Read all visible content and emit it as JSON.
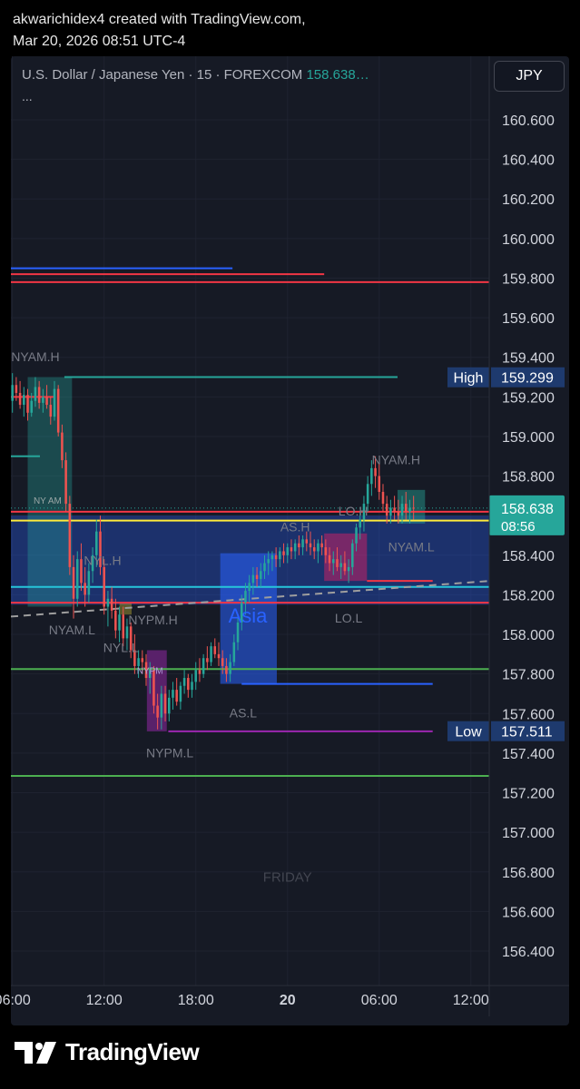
{
  "header": {
    "line1": "akwarichidex4 created with TradingView.com,",
    "line2": "Mar 20, 2026 08:51 UTC-4"
  },
  "legend": {
    "symbol": "U.S. Dollar / Japanese Yen · 15 · FOREXCOM",
    "price": "158.638…",
    "more": "..."
  },
  "currency_button": "JPY",
  "footer": {
    "brand": "TradingView"
  },
  "colors": {
    "up": "#26a69a",
    "down": "#ef5350",
    "panel": "#161a25"
  },
  "chart_data": {
    "type": "candlestick",
    "symbol": "USD/JPY",
    "interval": "15",
    "y_ticks": [
      160.6,
      160.4,
      160.2,
      160.0,
      159.8,
      159.6,
      159.4,
      159.2,
      159.0,
      158.8,
      158.6,
      158.4,
      158.2,
      158.0,
      157.8,
      157.6,
      157.4,
      157.2,
      157.0,
      156.8,
      156.6,
      156.4
    ],
    "ylim": [
      156.25,
      160.75
    ],
    "x_ticks": [
      {
        "label": "06:00",
        "h": 6
      },
      {
        "label": "12:00",
        "h": 12
      },
      {
        "label": "18:00",
        "h": 18
      },
      {
        "label": "20",
        "h": 24,
        "bold": true
      },
      {
        "label": "06:00",
        "h": 30
      },
      {
        "label": "12:00",
        "h": 36
      }
    ],
    "xlim_hours": [
      5.9,
      37.2
    ],
    "price_badges": [
      {
        "label": "High",
        "value": "159.299",
        "y": 159.299
      },
      {
        "label": "Low",
        "value": "157.511",
        "y": 157.511
      }
    ],
    "last_price": {
      "value": "158.638",
      "countdown": "08:56",
      "y": 158.638
    },
    "hlines": [
      {
        "y": 159.85,
        "x0": 5.9,
        "x1": 20.4,
        "color": "#2962ff"
      },
      {
        "y": 159.82,
        "x0": 5.9,
        "x1": 26.4,
        "color": "#f23645"
      },
      {
        "y": 159.78,
        "x0": 5.9,
        "x1": 37.2,
        "color": "#f23645"
      },
      {
        "y": 159.3,
        "x0": 9.4,
        "x1": 31.2,
        "color": "#26a69a"
      },
      {
        "y": 159.2,
        "x0": 5.9,
        "x1": 8.8,
        "color": "#f23645"
      },
      {
        "y": 158.9,
        "x0": 5.9,
        "x1": 7.8,
        "color": "#26a69a"
      },
      {
        "y": 158.62,
        "x0": 5.9,
        "x1": 37.2,
        "color": "#f23645"
      },
      {
        "y": 158.575,
        "x0": 5.9,
        "x1": 37.2,
        "color": "#ffeb3b"
      },
      {
        "y": 158.24,
        "x0": 5.9,
        "x1": 37.2,
        "color": "#26c6da"
      },
      {
        "y": 158.16,
        "x0": 5.9,
        "x1": 37.2,
        "color": "#f23645"
      },
      {
        "y": 157.825,
        "x0": 5.9,
        "x1": 37.2,
        "color": "#4caf50"
      },
      {
        "y": 157.285,
        "x0": 5.9,
        "x1": 37.2,
        "color": "#4caf50"
      },
      {
        "y": 157.75,
        "x0": 21.0,
        "x1": 33.5,
        "color": "#2962ff"
      },
      {
        "y": 157.51,
        "x0": 16.2,
        "x1": 33.5,
        "color": "#9c27b0"
      },
      {
        "y": 158.27,
        "x0": 29.2,
        "x1": 33.5,
        "color": "#f23645"
      }
    ],
    "zones": [
      {
        "y0": 158.15,
        "y1": 158.6,
        "x0": 5.9,
        "x1": 37.2,
        "color": "#2962ff",
        "opacity": 0.33
      },
      {
        "y0": 158.14,
        "y1": 159.3,
        "x0": 7.0,
        "x1": 9.9,
        "color": "#26a69a",
        "opacity": 0.35
      },
      {
        "y0": 157.51,
        "y1": 157.92,
        "x0": 14.8,
        "x1": 16.1,
        "color": "#9c27b0",
        "opacity": 0.5
      },
      {
        "y0": 157.75,
        "y1": 158.41,
        "x0": 19.6,
        "x1": 23.3,
        "color": "#2962ff",
        "opacity": 0.55
      },
      {
        "y0": 158.27,
        "y1": 158.51,
        "x0": 26.4,
        "x1": 29.2,
        "color": "#e91e63",
        "opacity": 0.45
      },
      {
        "y0": 158.56,
        "y1": 158.73,
        "x0": 31.2,
        "x1": 33.0,
        "color": "#26a69a",
        "opacity": 0.45
      },
      {
        "y0": 158.1,
        "y1": 158.16,
        "x0": 13.0,
        "x1": 13.8,
        "color": "#ffeb3b",
        "opacity": 0.3
      }
    ],
    "trendline": {
      "x0": 5.9,
      "y0": 158.09,
      "x1": 37.2,
      "y1": 158.27,
      "color": "#9e9e9e"
    },
    "dotted_last": {
      "y": 158.638,
      "color": "#26a69a"
    },
    "annotations": [
      {
        "text": "NYAM.H",
        "x": 7.5,
        "y": 159.38,
        "color": "#787b86",
        "size": 14
      },
      {
        "text": "NY AM",
        "x": 8.3,
        "y": 158.66,
        "color": "#9aa7a6",
        "size": 10
      },
      {
        "text": "NYL.H",
        "x": 11.9,
        "y": 158.35,
        "color": "#787b86",
        "size": 14
      },
      {
        "text": "NYAM.L",
        "x": 9.9,
        "y": 158.0,
        "color": "#787b86",
        "size": 14
      },
      {
        "text": "NYPM.H",
        "x": 15.2,
        "y": 158.05,
        "color": "#787b86",
        "size": 14
      },
      {
        "text": "NYL.L",
        "x": 13.1,
        "y": 157.91,
        "color": "#787b86",
        "size": 14
      },
      {
        "text": "NYPM",
        "x": 15.0,
        "y": 157.8,
        "color": "#b39ddb",
        "size": 10
      },
      {
        "text": "Asia",
        "x": 21.4,
        "y": 158.06,
        "color": "#2962ff",
        "size": 22
      },
      {
        "text": "AS.H",
        "x": 24.5,
        "y": 158.52,
        "color": "#787b86",
        "size": 14
      },
      {
        "text": "AS.L",
        "x": 21.1,
        "y": 157.58,
        "color": "#787b86",
        "size": 14
      },
      {
        "text": "NYPM.L",
        "x": 16.3,
        "y": 157.38,
        "color": "#787b86",
        "size": 14
      },
      {
        "text": "LO.H",
        "x": 28.3,
        "y": 158.6,
        "color": "#787b86",
        "size": 14
      },
      {
        "text": "LO.L",
        "x": 28.0,
        "y": 158.06,
        "color": "#787b86",
        "size": 14
      },
      {
        "text": "NYAM.H",
        "x": 31.1,
        "y": 158.86,
        "color": "#787b86",
        "size": 14
      },
      {
        "text": "NYAM.L",
        "x": 32.1,
        "y": 158.42,
        "color": "#787b86",
        "size": 14
      },
      {
        "text": "FRIDAY",
        "x": 24.0,
        "y": 156.75,
        "color": "#434651",
        "size": 15
      }
    ],
    "candles": [
      [
        6.0,
        159.18,
        159.32,
        159.12,
        159.26
      ],
      [
        6.25,
        159.26,
        159.3,
        159.18,
        159.22
      ],
      [
        6.5,
        159.22,
        159.28,
        159.14,
        159.16
      ],
      [
        6.75,
        159.16,
        159.25,
        159.1,
        159.21
      ],
      [
        7.0,
        159.21,
        159.24,
        159.08,
        159.12
      ],
      [
        7.25,
        159.12,
        159.22,
        159.1,
        159.18
      ],
      [
        7.5,
        159.18,
        159.3,
        159.15,
        159.25
      ],
      [
        7.75,
        159.25,
        159.28,
        159.14,
        159.17
      ],
      [
        8.0,
        159.17,
        159.24,
        159.12,
        159.2
      ],
      [
        8.25,
        159.2,
        159.26,
        159.14,
        159.16
      ],
      [
        8.5,
        159.16,
        159.2,
        159.06,
        159.1
      ],
      [
        8.75,
        159.1,
        159.28,
        159.08,
        159.24
      ],
      [
        9.0,
        159.24,
        159.26,
        159.0,
        159.02
      ],
      [
        9.25,
        159.02,
        159.06,
        158.84,
        158.88
      ],
      [
        9.5,
        158.88,
        158.92,
        158.62,
        158.66
      ],
      [
        9.75,
        158.66,
        158.7,
        158.3,
        158.34
      ],
      [
        10.0,
        158.34,
        158.4,
        158.08,
        158.18
      ],
      [
        10.25,
        158.18,
        158.42,
        158.14,
        158.38
      ],
      [
        10.5,
        158.38,
        158.46,
        158.22,
        158.26
      ],
      [
        10.75,
        158.26,
        158.34,
        158.14,
        158.2
      ],
      [
        11.0,
        158.2,
        158.36,
        158.16,
        158.32
      ],
      [
        11.25,
        158.32,
        158.44,
        158.26,
        158.4
      ],
      [
        11.5,
        158.4,
        158.58,
        158.34,
        158.52
      ],
      [
        11.75,
        158.52,
        158.6,
        158.3,
        158.34
      ],
      [
        12.0,
        158.34,
        158.38,
        158.1,
        158.14
      ],
      [
        12.25,
        158.14,
        158.22,
        158.04,
        158.18
      ],
      [
        12.5,
        158.18,
        158.24,
        158.08,
        158.12
      ],
      [
        12.75,
        158.12,
        158.18,
        157.98,
        158.02
      ],
      [
        13.0,
        158.02,
        158.14,
        157.96,
        158.1
      ],
      [
        13.25,
        158.1,
        158.14,
        157.94,
        157.98
      ],
      [
        13.5,
        157.98,
        158.08,
        157.92,
        158.04
      ],
      [
        13.75,
        158.04,
        158.06,
        157.88,
        157.92
      ],
      [
        14.0,
        157.92,
        158.0,
        157.8,
        157.84
      ],
      [
        14.25,
        157.84,
        157.92,
        157.78,
        157.88
      ],
      [
        14.5,
        157.88,
        157.92,
        157.8,
        157.86
      ],
      [
        14.75,
        157.86,
        157.9,
        157.74,
        157.78
      ],
      [
        15.0,
        157.78,
        157.86,
        157.7,
        157.82
      ],
      [
        15.25,
        157.82,
        157.84,
        157.6,
        157.64
      ],
      [
        15.5,
        157.64,
        157.7,
        157.52,
        157.58
      ],
      [
        15.75,
        157.58,
        157.74,
        157.52,
        157.7
      ],
      [
        16.0,
        157.7,
        157.74,
        157.56,
        157.6
      ],
      [
        16.25,
        157.6,
        157.72,
        157.56,
        157.68
      ],
      [
        16.5,
        157.68,
        157.76,
        157.62,
        157.72
      ],
      [
        16.75,
        157.72,
        157.78,
        157.64,
        157.66
      ],
      [
        17.0,
        157.66,
        157.76,
        157.62,
        157.74
      ],
      [
        17.25,
        157.74,
        157.82,
        157.7,
        157.78
      ],
      [
        17.5,
        157.78,
        157.8,
        157.68,
        157.72
      ],
      [
        17.75,
        157.72,
        157.8,
        157.68,
        157.76
      ],
      [
        18.0,
        157.76,
        157.86,
        157.72,
        157.82
      ],
      [
        18.25,
        157.82,
        157.88,
        157.76,
        157.8
      ],
      [
        18.5,
        157.8,
        157.9,
        157.78,
        157.88
      ],
      [
        18.75,
        157.88,
        157.94,
        157.82,
        157.86
      ],
      [
        19.0,
        157.86,
        157.96,
        157.84,
        157.94
      ],
      [
        19.25,
        157.94,
        157.98,
        157.88,
        157.9
      ],
      [
        19.5,
        157.9,
        157.96,
        157.84,
        157.88
      ],
      [
        19.75,
        157.88,
        157.92,
        157.8,
        157.84
      ],
      [
        20.0,
        157.84,
        157.88,
        157.76,
        157.8
      ],
      [
        20.25,
        157.8,
        157.9,
        157.76,
        157.86
      ],
      [
        20.5,
        157.86,
        158.0,
        157.84,
        157.96
      ],
      [
        20.75,
        157.96,
        158.1,
        157.92,
        158.06
      ],
      [
        21.0,
        158.06,
        158.2,
        158.02,
        158.16
      ],
      [
        21.25,
        158.16,
        158.26,
        158.1,
        158.22
      ],
      [
        21.5,
        158.22,
        158.3,
        158.16,
        158.26
      ],
      [
        21.75,
        158.26,
        158.34,
        158.2,
        158.3
      ],
      [
        22.0,
        158.3,
        158.34,
        158.24,
        158.28
      ],
      [
        22.25,
        158.28,
        158.36,
        158.24,
        158.32
      ],
      [
        22.5,
        158.32,
        158.4,
        158.28,
        158.36
      ],
      [
        22.75,
        158.36,
        158.42,
        158.3,
        158.38
      ],
      [
        23.0,
        158.38,
        158.42,
        158.32,
        158.4
      ],
      [
        23.25,
        158.4,
        158.44,
        158.34,
        158.38
      ],
      [
        23.5,
        158.38,
        158.44,
        158.34,
        158.42
      ],
      [
        23.75,
        158.42,
        158.46,
        158.36,
        158.4
      ],
      [
        24.0,
        158.4,
        158.46,
        158.36,
        158.44
      ],
      [
        24.25,
        158.44,
        158.48,
        158.38,
        158.42
      ],
      [
        24.5,
        158.42,
        158.48,
        158.38,
        158.46
      ],
      [
        24.75,
        158.46,
        158.5,
        158.4,
        158.44
      ],
      [
        25.0,
        158.44,
        158.5,
        158.4,
        158.48
      ],
      [
        25.25,
        158.48,
        158.52,
        158.42,
        158.46
      ],
      [
        25.5,
        158.46,
        158.52,
        158.4,
        158.44
      ],
      [
        25.75,
        158.44,
        158.48,
        158.38,
        158.42
      ],
      [
        26.0,
        158.42,
        158.48,
        158.36,
        158.46
      ],
      [
        26.25,
        158.46,
        158.5,
        158.4,
        158.44
      ],
      [
        26.5,
        158.44,
        158.48,
        158.36,
        158.4
      ],
      [
        26.75,
        158.4,
        158.44,
        158.32,
        158.36
      ],
      [
        27.0,
        158.36,
        158.42,
        158.3,
        158.38
      ],
      [
        27.25,
        158.38,
        158.44,
        158.32,
        158.34
      ],
      [
        27.5,
        158.34,
        158.4,
        158.28,
        158.36
      ],
      [
        27.75,
        158.36,
        158.42,
        158.3,
        158.32
      ],
      [
        28.0,
        158.32,
        158.38,
        158.26,
        158.34
      ],
      [
        28.25,
        158.34,
        158.48,
        158.3,
        158.46
      ],
      [
        28.5,
        158.46,
        158.56,
        158.42,
        158.54
      ],
      [
        28.75,
        158.54,
        158.62,
        158.48,
        158.58
      ],
      [
        29.0,
        158.58,
        158.7,
        158.52,
        158.66
      ],
      [
        29.25,
        158.66,
        158.8,
        158.62,
        158.76
      ],
      [
        29.5,
        158.76,
        158.88,
        158.7,
        158.84
      ],
      [
        29.75,
        158.84,
        158.9,
        158.74,
        158.8
      ],
      [
        30.0,
        158.8,
        158.86,
        158.68,
        158.72
      ],
      [
        30.25,
        158.72,
        158.76,
        158.62,
        158.66
      ],
      [
        30.5,
        158.66,
        158.7,
        158.56,
        158.6
      ],
      [
        30.75,
        158.6,
        158.68,
        158.56,
        158.64
      ],
      [
        31.0,
        158.64,
        158.7,
        158.58,
        158.62
      ],
      [
        31.25,
        158.62,
        158.68,
        158.56,
        158.6
      ],
      [
        31.5,
        158.6,
        158.7,
        158.56,
        158.66
      ],
      [
        31.75,
        158.66,
        158.72,
        158.58,
        158.62
      ],
      [
        32.0,
        158.62,
        158.68,
        158.56,
        158.64
      ],
      [
        32.25,
        158.64,
        158.7,
        158.58,
        158.638
      ]
    ]
  }
}
